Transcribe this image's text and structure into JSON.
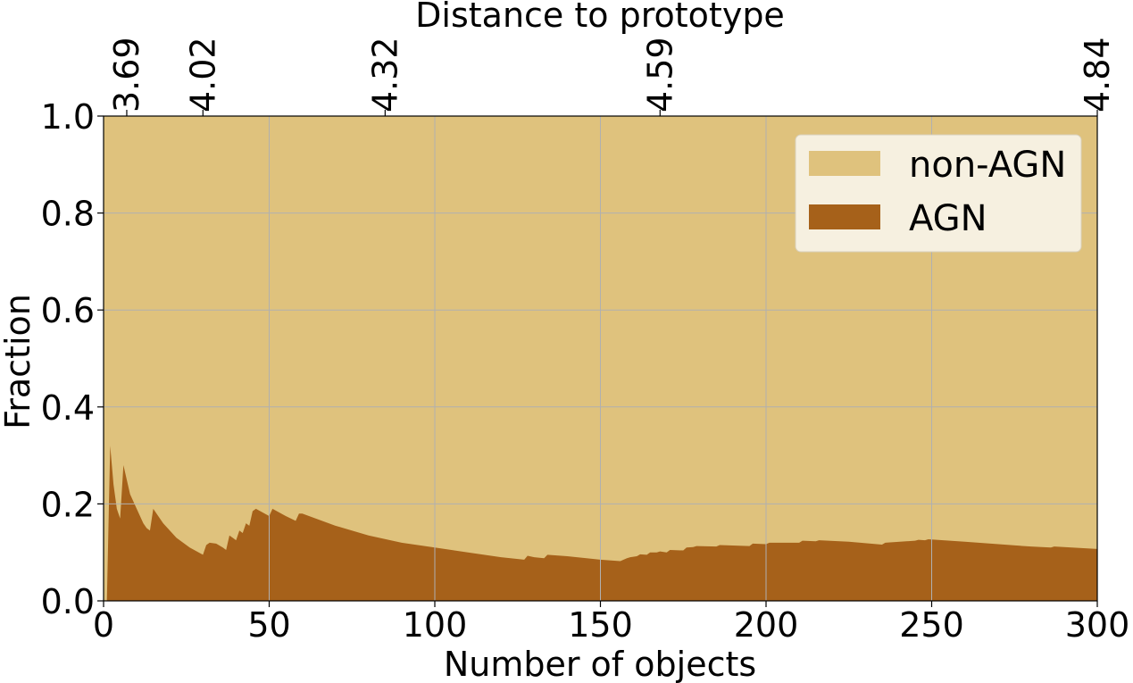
{
  "chart_data": {
    "type": "area",
    "stacked": true,
    "title": "",
    "xlabel": "Number of objects",
    "ylabel": "Fraction",
    "top_xlabel": "Distance to prototype",
    "xlim": [
      0,
      300
    ],
    "ylim": [
      0,
      1
    ],
    "grid": true,
    "legend_position": "top-right",
    "x_ticks": [
      "0",
      "50",
      "100",
      "150",
      "200",
      "250",
      "300"
    ],
    "y_ticks": [
      "0.0",
      "0.2",
      "0.4",
      "0.6",
      "0.8",
      "1.0"
    ],
    "top_ticks": [
      {
        "x": 7,
        "label": "3.69"
      },
      {
        "x": 30,
        "label": "4.02"
      },
      {
        "x": 85,
        "label": "4.32"
      },
      {
        "x": 168,
        "label": "4.59"
      },
      {
        "x": 300,
        "label": "4.84"
      }
    ],
    "series": [
      {
        "name": "non-AGN",
        "color": "#dfc27d",
        "values": "complement of AGN fraction (stacked to 1.0)"
      },
      {
        "name": "AGN",
        "color": "#a6611a",
        "x": [
          1,
          2,
          3,
          4,
          5,
          6,
          7,
          8,
          10,
          12,
          13,
          14,
          15,
          18,
          22,
          26,
          30,
          31,
          32,
          34,
          36,
          37,
          38,
          39,
          40,
          41,
          42,
          43,
          44,
          45,
          46,
          50,
          51,
          55,
          58,
          59,
          60,
          70,
          80,
          90,
          100,
          110,
          120,
          127,
          128,
          130,
          133,
          134,
          140,
          150,
          156,
          158,
          159,
          161,
          162,
          164,
          165,
          167,
          168,
          170,
          171,
          175,
          176,
          178,
          179,
          185,
          186,
          195,
          196,
          200,
          201,
          210,
          211,
          215,
          216,
          225,
          235,
          236,
          245,
          246,
          248,
          249,
          260,
          280,
          286,
          287,
          300
        ],
        "values": [
          0.0,
          0.32,
          0.24,
          0.19,
          0.17,
          0.28,
          0.25,
          0.22,
          0.19,
          0.16,
          0.15,
          0.145,
          0.19,
          0.16,
          0.13,
          0.11,
          0.095,
          0.115,
          0.12,
          0.118,
          0.11,
          0.105,
          0.135,
          0.13,
          0.125,
          0.145,
          0.14,
          0.16,
          0.155,
          0.185,
          0.19,
          0.175,
          0.19,
          0.175,
          0.165,
          0.18,
          0.18,
          0.155,
          0.135,
          0.12,
          0.11,
          0.1,
          0.09,
          0.085,
          0.093,
          0.09,
          0.088,
          0.095,
          0.092,
          0.085,
          0.082,
          0.088,
          0.09,
          0.092,
          0.096,
          0.095,
          0.1,
          0.1,
          0.102,
          0.1,
          0.105,
          0.104,
          0.11,
          0.111,
          0.113,
          0.112,
          0.115,
          0.113,
          0.118,
          0.117,
          0.12,
          0.12,
          0.124,
          0.123,
          0.125,
          0.122,
          0.116,
          0.12,
          0.124,
          0.126,
          0.125,
          0.127,
          0.122,
          0.112,
          0.11,
          0.112,
          0.107
        ]
      }
    ]
  }
}
